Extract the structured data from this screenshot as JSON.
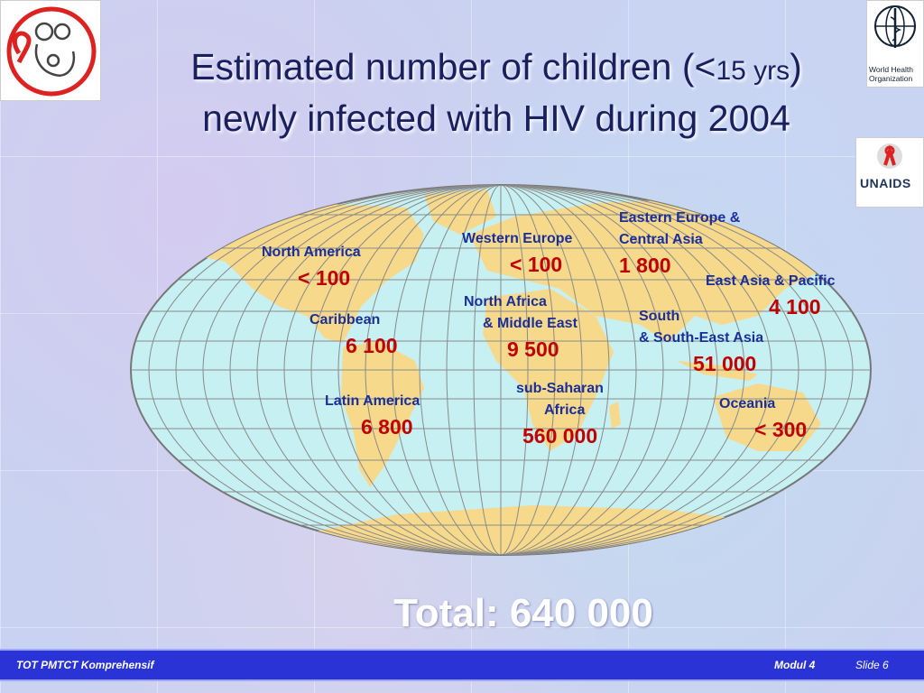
{
  "header": {
    "title_line1_pre": "Estimated number of children (<",
    "title_line1_small": "15 yrs",
    "title_line1_post": ")",
    "title_line2": "newly infected with HIV during 2004"
  },
  "logos": {
    "who_text_line1": "World Health",
    "who_text_line2": "Organization",
    "unaids_text": "UNAIDS"
  },
  "regions": [
    {
      "name": "North America",
      "value": "< 100"
    },
    {
      "name": "Caribbean",
      "value": "6 100"
    },
    {
      "name": "Latin America",
      "value": "6 800"
    },
    {
      "name": "Western Europe",
      "value": "< 100"
    },
    {
      "name_line1": "North Africa",
      "name_line2": "& Middle East",
      "value": "9 500"
    },
    {
      "name_line1": "sub-Saharan",
      "name_line2": "Africa",
      "value": "560 000"
    },
    {
      "name_line1": "Eastern Europe &",
      "name_line2": "Central Asia",
      "value": "1 800"
    },
    {
      "name": "East Asia & Pacific",
      "value": "4 100"
    },
    {
      "name_line1": "South",
      "name_line2": "& South-East Asia",
      "value": "51 000"
    },
    {
      "name": "Oceania",
      "value": "< 300"
    }
  ],
  "total": "Total: 640 000",
  "footer": {
    "left": "TOT PMTCT Komprehensif",
    "module": "Modul 4",
    "slide": "Slide 6"
  },
  "colors": {
    "ocean": "#c7f0f2",
    "land": "#f7d98c",
    "label": "#1a2f9a",
    "value": "#c00000",
    "footer": "#2a33d6"
  }
}
